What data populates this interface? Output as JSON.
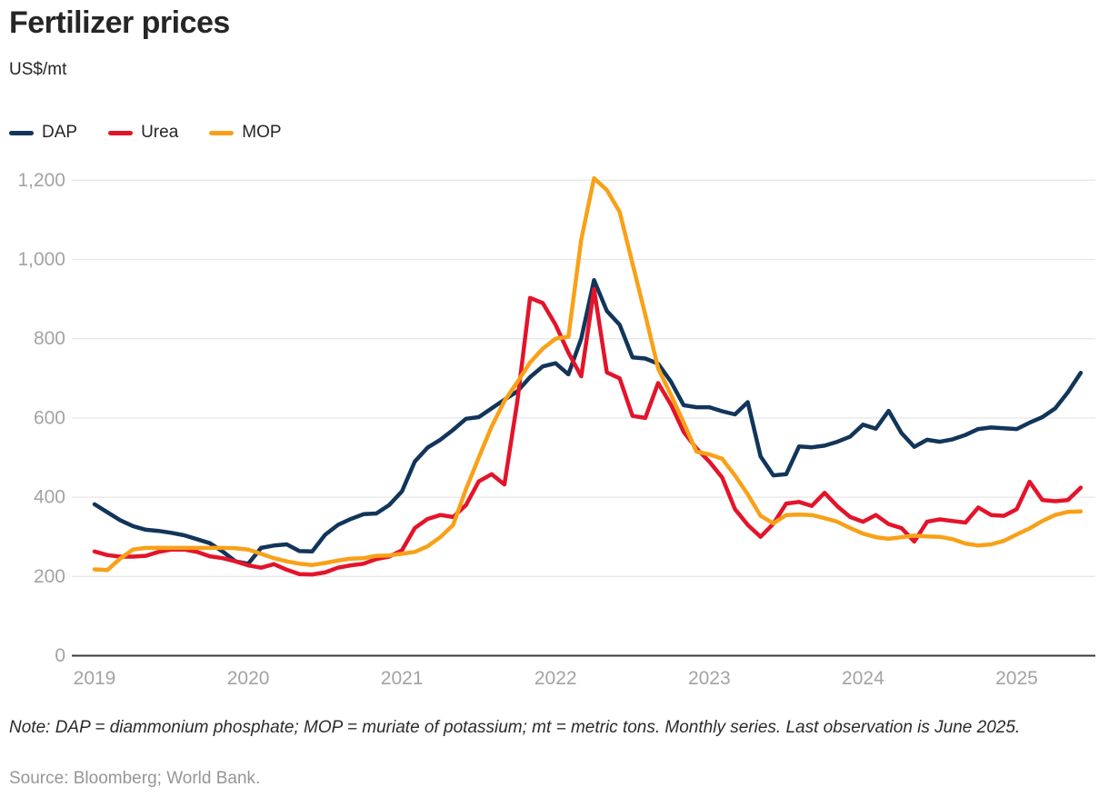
{
  "title": "Fertilizer prices",
  "subtitle": "US$/mt",
  "note": "Note: DAP = diammonium phosphate; MOP = muriate of potassium; mt = metric tons. Monthly series. Last observation is June 2025.",
  "source": "Source: Bloomberg; World Bank.",
  "colors": {
    "dap": "#12355a",
    "urea": "#e3142a",
    "mop": "#f8a118",
    "grid": "#e7e7e7",
    "axis": "#3a3a3a",
    "tick_label": "#a3a3a3"
  },
  "chart_data": {
    "type": "line",
    "title": "Fertilizer prices",
    "ylabel": "US$/mt",
    "frequency": "monthly",
    "x_start": "2019-01",
    "x_end": "2025-06",
    "grid": "horizontal",
    "legend_position": "top-left",
    "ylim": [
      0,
      1260
    ],
    "y_ticks": [
      0,
      200,
      400,
      600,
      800,
      1000,
      1200
    ],
    "y_tick_labels": [
      "0",
      "200",
      "400",
      "600",
      "800",
      "1,000",
      "1,200"
    ],
    "x_tick_labels": [
      "2019",
      "2020",
      "2021",
      "2022",
      "2023",
      "2024",
      "2025"
    ],
    "x_tick_month_index": [
      0,
      12,
      24,
      36,
      48,
      60,
      72
    ],
    "series": [
      {
        "name": "DAP",
        "color": "#12355a",
        "values": [
          382,
          362,
          342,
          327,
          318,
          315,
          310,
          304,
          294,
          284,
          263,
          238,
          232,
          272,
          278,
          281,
          264,
          263,
          305,
          330,
          345,
          357,
          359,
          380,
          415,
          490,
          525,
          545,
          570,
          598,
          602,
          624,
          646,
          667,
          703,
          730,
          738,
          710,
          800,
          948,
          870,
          835,
          753,
          750,
          737,
          692,
          632,
          627,
          627,
          617,
          609,
          640,
          503,
          455,
          458,
          528,
          526,
          530,
          540,
          553,
          583,
          573,
          618,
          562,
          527,
          545,
          540,
          546,
          557,
          572,
          576,
          574,
          572,
          588,
          602,
          624,
          665,
          714
        ]
      },
      {
        "name": "Urea",
        "color": "#e3142a",
        "values": [
          263,
          254,
          250,
          250,
          252,
          262,
          268,
          268,
          262,
          251,
          246,
          238,
          228,
          222,
          231,
          217,
          206,
          205,
          210,
          222,
          228,
          232,
          244,
          250,
          266,
          322,
          345,
          355,
          350,
          380,
          440,
          458,
          432,
          640,
          903,
          890,
          835,
          765,
          705,
          925,
          715,
          700,
          605,
          600,
          688,
          634,
          565,
          523,
          490,
          450,
          370,
          330,
          300,
          333,
          384,
          388,
          378,
          411,
          377,
          350,
          338,
          355,
          332,
          322,
          288,
          338,
          344,
          340,
          336,
          374,
          355,
          353,
          370,
          439,
          393,
          390,
          393,
          424
        ]
      },
      {
        "name": "MOP",
        "color": "#f8a118",
        "values": [
          218,
          216,
          245,
          268,
          272,
          272,
          272,
          272,
          272,
          272,
          272,
          271,
          268,
          257,
          246,
          238,
          232,
          229,
          234,
          240,
          245,
          246,
          252,
          253,
          257,
          262,
          276,
          299,
          330,
          420,
          500,
          578,
          643,
          690,
          740,
          775,
          800,
          805,
          1050,
          1205,
          1175,
          1120,
          990,
          860,
          725,
          659,
          588,
          515,
          508,
          497,
          455,
          407,
          353,
          334,
          355,
          356,
          355,
          347,
          338,
          322,
          308,
          299,
          295,
          299,
          303,
          301,
          300,
          294,
          283,
          278,
          281,
          290,
          306,
          321,
          340,
          355,
          363,
          364
        ]
      }
    ]
  }
}
